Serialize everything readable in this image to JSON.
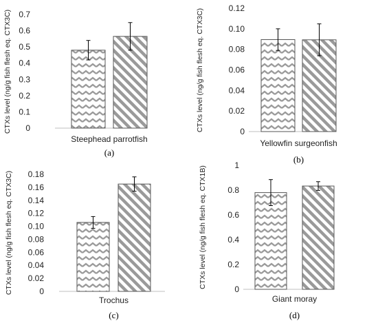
{
  "chart_data": [
    {
      "type": "bar",
      "panel": "(a)",
      "xlabel": "Steephead parrotfish",
      "ylabel": "CTXs level (ng/g fish flesh eq. CTX3C)",
      "ylim": [
        0,
        0.7
      ],
      "yticks": [
        "0",
        "0.1",
        "0.2",
        "0.3",
        "0.4",
        "0.5",
        "0.6",
        "0.7"
      ],
      "categories": [
        "",
        ""
      ],
      "values": [
        0.48,
        0.565
      ],
      "errors": [
        0.06,
        0.085
      ],
      "patterns": [
        "zigzag",
        "diagonal"
      ],
      "grid": false,
      "legend": "none"
    },
    {
      "type": "bar",
      "panel": "(b)",
      "xlabel": "Yellowfin surgeonfish",
      "ylabel": "CTXs level (ng/g fish flesh eq. CTX3C)",
      "ylim": [
        0,
        0.12
      ],
      "yticks": [
        "0",
        "0.02",
        "0.04",
        "0.06",
        "0.08",
        "0.10",
        "0.12"
      ],
      "categories": [
        "",
        ""
      ],
      "values": [
        0.0895,
        0.0893
      ],
      "errors": [
        0.0105,
        0.0155
      ],
      "patterns": [
        "zigzag",
        "diagonal"
      ],
      "grid": false,
      "legend": "none"
    },
    {
      "type": "bar",
      "panel": "(c)",
      "xlabel": "Trochus",
      "ylabel": "CTXs level (ng/g fish flesh eq. CTX3C)",
      "ylim": [
        0,
        0.18
      ],
      "yticks": [
        "0",
        "0.02",
        "0.04",
        "0.06",
        "0.08",
        "0.10",
        "0.12",
        "0.14",
        "0.16",
        "0.18"
      ],
      "categories": [
        "",
        ""
      ],
      "values": [
        0.106,
        0.165
      ],
      "errors": [
        0.009,
        0.011
      ],
      "patterns": [
        "zigzag",
        "diagonal"
      ],
      "grid": false,
      "legend": "none"
    },
    {
      "type": "bar",
      "panel": "(d)",
      "xlabel": "Giant moray",
      "ylabel": "CTXs level (ng/g fish flesh eq. CTX1B)",
      "ylim": [
        0,
        1
      ],
      "yticks": [
        "0",
        "0.2",
        "0.4",
        "0.6",
        "0.8",
        "1"
      ],
      "categories": [
        "",
        ""
      ],
      "values": [
        0.78,
        0.833
      ],
      "errors": [
        0.105,
        0.035
      ],
      "patterns": [
        "zigzag",
        "diagonal"
      ],
      "grid": false,
      "legend": "none"
    }
  ],
  "colors": {
    "pattern_stroke": "#9a9a9a",
    "bar_outline": "#555555",
    "axis": "#bfbfbf",
    "error_bar": "#000000"
  }
}
